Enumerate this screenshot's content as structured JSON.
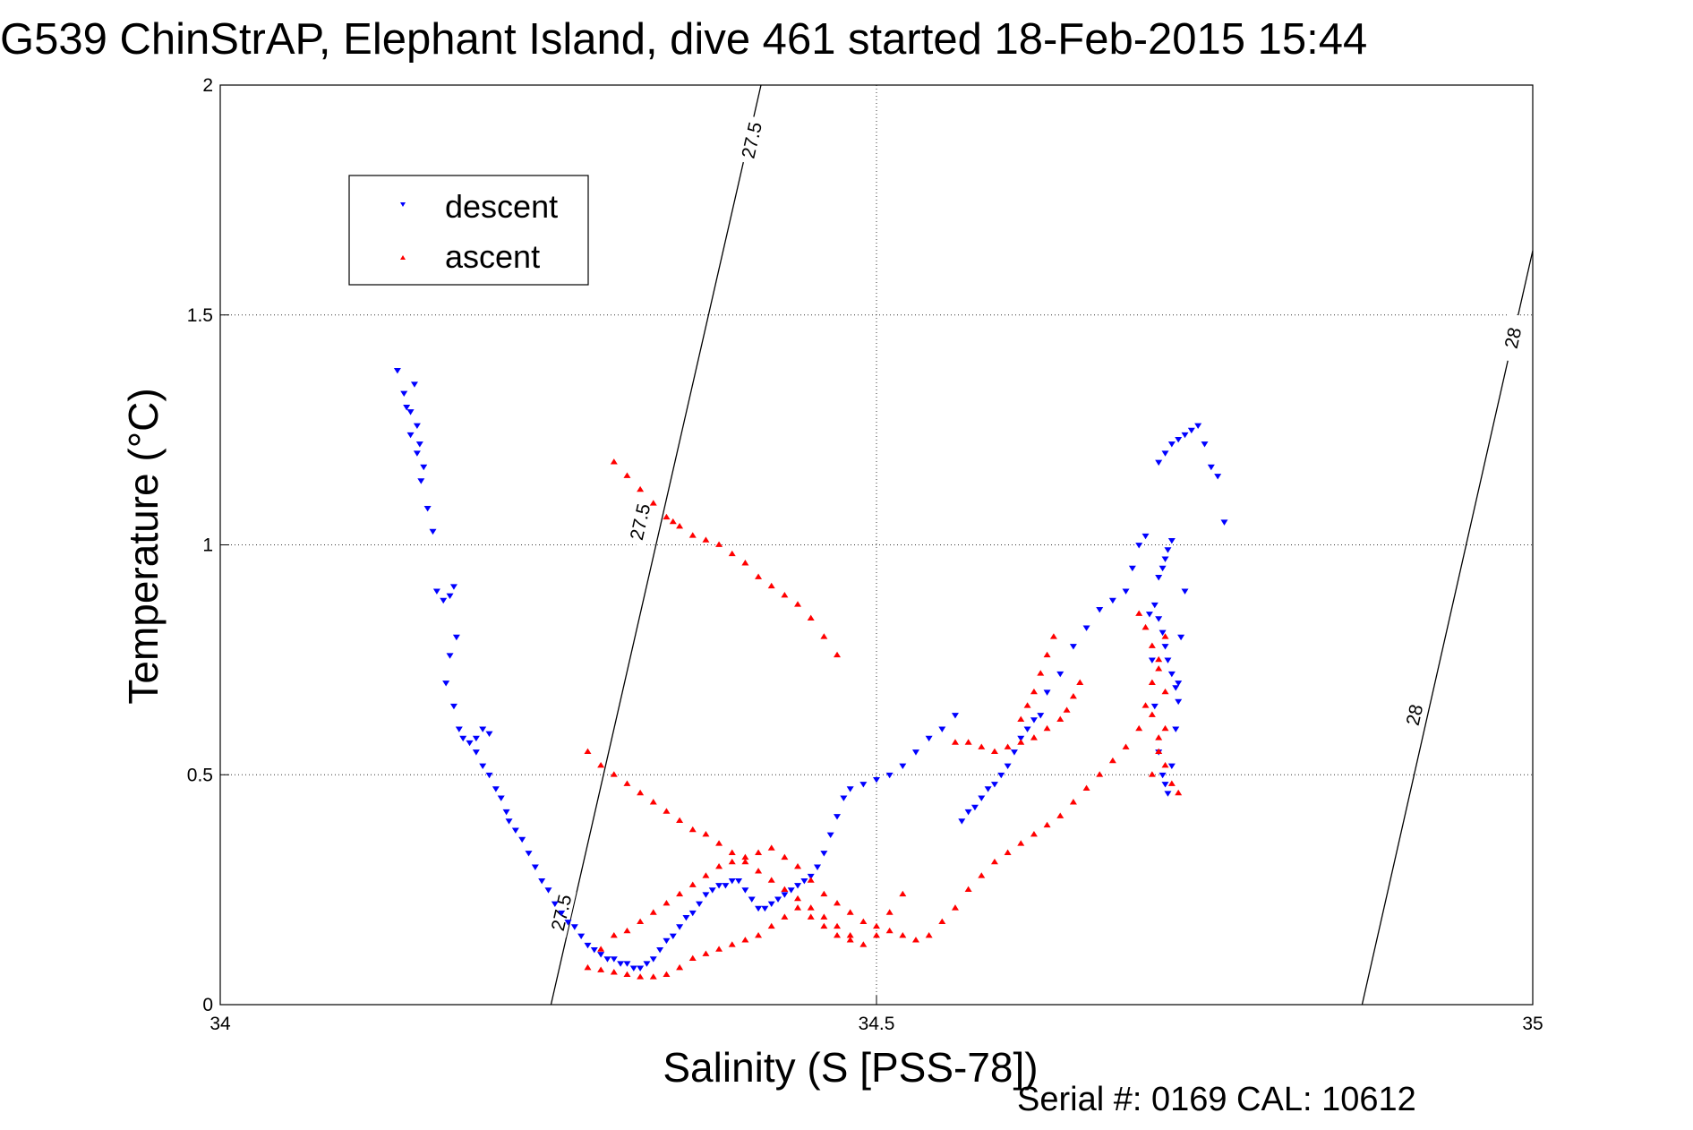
{
  "chart_data": {
    "type": "scatter",
    "title": "G539 ChinStrAP, Elephant Island, dive 461 started 18-Feb-2015 15:44",
    "xlabel": "Salinity (S [PSS-78])",
    "ylabel": "Temperature (°C)",
    "xlim": [
      34,
      35
    ],
    "ylim": [
      0,
      2
    ],
    "xticks": [
      34,
      34.5,
      35
    ],
    "yticks": [
      0,
      0.5,
      1,
      1.5,
      2
    ],
    "xtick_labels": [
      "34",
      "34.5",
      "35"
    ],
    "ytick_labels": [
      "0",
      "0.5",
      "1",
      "1.5",
      "2"
    ],
    "grid": true,
    "legend_position": "upper-left",
    "footer": "Serial #: 0169 CAL: 10612",
    "series": [
      {
        "name": "descent",
        "color": "#0000ff",
        "marker": "triangle-down",
        "x": [
          34.135,
          34.14,
          34.145,
          34.15,
          34.152,
          34.155,
          34.148,
          34.142,
          34.145,
          34.15,
          34.153,
          34.158,
          34.162,
          34.165,
          34.17,
          34.175,
          34.178,
          34.18,
          34.175,
          34.172,
          34.178,
          34.182,
          34.185,
          34.19,
          34.195,
          34.2,
          34.205,
          34.195,
          34.2,
          34.205,
          34.21,
          34.214,
          34.218,
          34.22,
          34.225,
          34.23,
          34.235,
          34.24,
          34.245,
          34.25,
          34.255,
          34.26,
          34.265,
          34.27,
          34.275,
          34.28,
          34.285,
          34.29,
          34.295,
          34.3,
          34.305,
          34.31,
          34.315,
          34.32,
          34.325,
          34.33,
          34.335,
          34.34,
          34.345,
          34.35,
          34.355,
          34.36,
          34.365,
          34.37,
          34.375,
          34.38,
          34.385,
          34.39,
          34.395,
          34.4,
          34.405,
          34.41,
          34.415,
          34.42,
          34.425,
          34.43,
          34.435,
          34.44,
          34.445,
          34.45,
          34.455,
          34.46,
          34.465,
          34.47,
          34.475,
          34.48,
          34.49,
          34.5,
          34.51,
          34.52,
          34.53,
          34.54,
          34.55,
          34.56,
          34.565,
          34.57,
          34.575,
          34.58,
          34.585,
          34.59,
          34.595,
          34.6,
          34.605,
          34.61,
          34.615,
          34.62,
          34.625,
          34.63,
          34.64,
          34.65,
          34.66,
          34.67,
          34.68,
          34.69,
          34.695,
          34.7,
          34.705,
          34.708,
          34.71,
          34.712,
          34.715,
          34.718,
          34.72,
          34.722,
          34.725,
          34.728,
          34.73,
          34.732,
          34.735,
          34.715,
          34.72,
          34.725,
          34.73,
          34.735,
          34.74,
          34.745,
          34.75,
          34.755,
          34.76,
          34.765,
          34.715,
          34.718,
          34.72,
          34.722,
          34.725,
          34.712,
          34.715,
          34.718,
          34.72,
          34.722,
          34.725,
          34.728,
          34.73
        ],
        "y": [
          1.38,
          1.33,
          1.29,
          1.26,
          1.22,
          1.17,
          1.35,
          1.3,
          1.24,
          1.2,
          1.14,
          1.08,
          1.03,
          0.9,
          0.88,
          0.89,
          0.91,
          0.8,
          0.76,
          0.7,
          0.65,
          0.6,
          0.58,
          0.57,
          0.55,
          0.52,
          0.5,
          0.58,
          0.6,
          0.59,
          0.47,
          0.45,
          0.42,
          0.4,
          0.38,
          0.36,
          0.33,
          0.3,
          0.27,
          0.25,
          0.22,
          0.2,
          0.18,
          0.17,
          0.15,
          0.13,
          0.12,
          0.11,
          0.1,
          0.1,
          0.09,
          0.09,
          0.08,
          0.08,
          0.09,
          0.1,
          0.12,
          0.14,
          0.15,
          0.17,
          0.19,
          0.2,
          0.22,
          0.24,
          0.25,
          0.26,
          0.26,
          0.27,
          0.27,
          0.25,
          0.23,
          0.21,
          0.21,
          0.22,
          0.23,
          0.24,
          0.25,
          0.26,
          0.27,
          0.28,
          0.3,
          0.33,
          0.37,
          0.41,
          0.45,
          0.47,
          0.48,
          0.49,
          0.5,
          0.52,
          0.55,
          0.58,
          0.6,
          0.63,
          0.4,
          0.42,
          0.43,
          0.45,
          0.47,
          0.48,
          0.5,
          0.52,
          0.55,
          0.58,
          0.6,
          0.62,
          0.63,
          0.68,
          0.72,
          0.78,
          0.82,
          0.86,
          0.88,
          0.9,
          0.95,
          1.0,
          1.02,
          0.85,
          0.75,
          0.65,
          0.55,
          0.5,
          0.48,
          0.46,
          0.52,
          0.6,
          0.7,
          0.8,
          0.9,
          1.18,
          1.2,
          1.22,
          1.23,
          1.24,
          1.25,
          1.26,
          1.22,
          1.17,
          1.15,
          1.05,
          0.93,
          0.95,
          0.97,
          0.99,
          1.01,
          0.87,
          0.84,
          0.81,
          0.78,
          0.75,
          0.72,
          0.69,
          0.66
        ],
        "marker_size": 4
      },
      {
        "name": "ascent",
        "color": "#ff0000",
        "marker": "triangle-up",
        "x": [
          34.28,
          34.29,
          34.3,
          34.31,
          34.32,
          34.33,
          34.34,
          34.35,
          34.36,
          34.37,
          34.38,
          34.39,
          34.4,
          34.41,
          34.42,
          34.43,
          34.44,
          34.45,
          34.46,
          34.47,
          34.48,
          34.49,
          34.5,
          34.51,
          34.52,
          34.3,
          34.31,
          34.32,
          34.33,
          34.34,
          34.345,
          34.35,
          34.36,
          34.37,
          34.38,
          34.39,
          34.4,
          34.41,
          34.42,
          34.43,
          34.44,
          34.45,
          34.46,
          34.47,
          34.28,
          34.29,
          34.3,
          34.31,
          34.32,
          34.33,
          34.34,
          34.35,
          34.36,
          34.37,
          34.38,
          34.39,
          34.4,
          34.41,
          34.42,
          34.43,
          34.44,
          34.45,
          34.46,
          34.47,
          34.48,
          34.29,
          34.3,
          34.31,
          34.32,
          34.33,
          34.34,
          34.35,
          34.36,
          34.37,
          34.38,
          34.39,
          34.4,
          34.41,
          34.42,
          34.43,
          34.44,
          34.45,
          34.46,
          34.47,
          34.48,
          34.49,
          34.5,
          34.51,
          34.52,
          34.53,
          34.54,
          34.55,
          34.56,
          34.57,
          34.58,
          34.59,
          34.6,
          34.61,
          34.62,
          34.63,
          34.64,
          34.65,
          34.66,
          34.67,
          34.68,
          34.69,
          34.7,
          34.705,
          34.71,
          34.715,
          34.72,
          34.7,
          34.705,
          34.71,
          34.715,
          34.72,
          34.71,
          34.715,
          34.72,
          34.725,
          34.73,
          34.71,
          34.715,
          34.72,
          34.56,
          34.57,
          34.58,
          34.59,
          34.6,
          34.61,
          34.62,
          34.63,
          34.64,
          34.645,
          34.65,
          34.655,
          34.61,
          34.615,
          34.62,
          34.625,
          34.63,
          34.635
        ],
        "y": [
          0.08,
          0.075,
          0.07,
          0.065,
          0.06,
          0.06,
          0.065,
          0.08,
          0.1,
          0.11,
          0.12,
          0.13,
          0.14,
          0.15,
          0.17,
          0.19,
          0.21,
          0.19,
          0.17,
          0.15,
          0.14,
          0.13,
          0.15,
          0.2,
          0.24,
          1.18,
          1.15,
          1.12,
          1.09,
          1.06,
          1.05,
          1.04,
          1.02,
          1.01,
          1.0,
          0.98,
          0.96,
          0.93,
          0.91,
          0.89,
          0.87,
          0.84,
          0.8,
          0.76,
          0.55,
          0.52,
          0.5,
          0.48,
          0.46,
          0.44,
          0.42,
          0.4,
          0.38,
          0.37,
          0.35,
          0.33,
          0.31,
          0.29,
          0.27,
          0.25,
          0.23,
          0.21,
          0.19,
          0.17,
          0.15,
          0.12,
          0.15,
          0.16,
          0.18,
          0.2,
          0.22,
          0.24,
          0.26,
          0.28,
          0.3,
          0.31,
          0.32,
          0.33,
          0.34,
          0.32,
          0.3,
          0.27,
          0.24,
          0.22,
          0.2,
          0.18,
          0.17,
          0.16,
          0.15,
          0.14,
          0.15,
          0.18,
          0.21,
          0.25,
          0.28,
          0.31,
          0.33,
          0.35,
          0.37,
          0.39,
          0.41,
          0.44,
          0.47,
          0.5,
          0.53,
          0.56,
          0.6,
          0.65,
          0.7,
          0.75,
          0.8,
          0.85,
          0.82,
          0.78,
          0.73,
          0.68,
          0.63,
          0.58,
          0.52,
          0.48,
          0.46,
          0.5,
          0.55,
          0.6,
          0.57,
          0.57,
          0.56,
          0.55,
          0.56,
          0.57,
          0.58,
          0.6,
          0.62,
          0.64,
          0.67,
          0.7,
          0.62,
          0.65,
          0.68,
          0.72,
          0.76,
          0.8
        ],
        "marker_size": 4
      }
    ],
    "isopycnals": [
      {
        "label": "27.5",
        "points": [
          [
            34.252,
            0
          ],
          [
            34.412,
            2
          ]
        ],
        "label_positions": [
          [
            34.26,
            0.2
          ],
          [
            34.32,
            1.05
          ],
          [
            34.405,
            1.88
          ]
        ]
      },
      {
        "label": "28",
        "points": [
          [
            34.87,
            0
          ],
          [
            35.0,
            1.64
          ]
        ],
        "label_positions": [
          [
            34.91,
            0.63
          ],
          [
            34.985,
            1.45
          ]
        ]
      }
    ]
  }
}
